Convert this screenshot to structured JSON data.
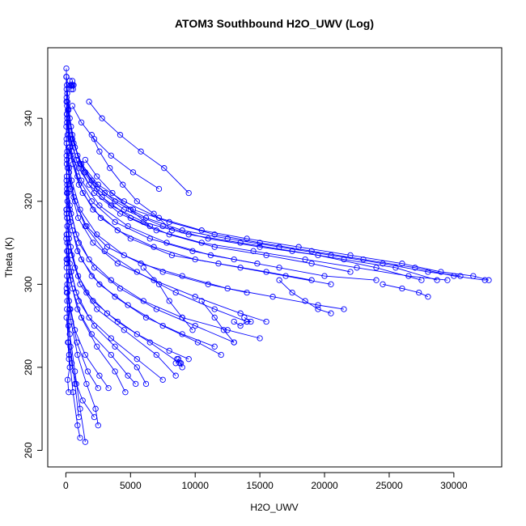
{
  "chart_data": {
    "type": "scatter",
    "title": "ATOM3 Southbound H2O_UWV (Log)",
    "xlabel": "H2O_UWV",
    "ylabel": "Theta (K)",
    "xlim": [
      -1400,
      33700
    ],
    "ylim": [
      256,
      357
    ],
    "xticks": [
      0,
      5000,
      10000,
      15000,
      20000,
      25000,
      30000
    ],
    "yticks": [
      260,
      280,
      300,
      320,
      340
    ],
    "xtick_labels": [
      "0",
      "5000",
      "10000",
      "15000",
      "20000",
      "25000",
      "30000"
    ],
    "ytick_labels": [
      "260",
      "280",
      "300",
      "320",
      "340"
    ],
    "series_color": "#0000ff",
    "marker": "open-circle",
    "connected": true,
    "profiles": [
      {
        "x": [
          50,
          200,
          500,
          1200,
          2500,
          4500,
          7200,
          10500,
          14000,
          18000,
          22000,
          26000,
          29000,
          31500,
          32700
        ],
        "y": [
          350,
          342,
          335,
          329,
          324,
          320,
          316,
          313,
          311,
          309,
          307,
          305,
          303,
          302,
          301
        ]
      },
      {
        "x": [
          80,
          300,
          700,
          1500,
          3000,
          5200,
          8000,
          11500,
          15000,
          19000,
          23000,
          27000,
          30000,
          32400
        ],
        "y": [
          348,
          340,
          333,
          327,
          322,
          318,
          315,
          312,
          310,
          308,
          306,
          304,
          302,
          301
        ]
      },
      {
        "x": [
          100,
          400,
          900,
          2000,
          3800,
          6200,
          9000,
          12500,
          16500,
          20500,
          24500,
          28000,
          30500
        ],
        "y": [
          346,
          338,
          331,
          325,
          320,
          316,
          313,
          311,
          309,
          307,
          305,
          303,
          302
        ]
      },
      {
        "x": [
          60,
          250,
          800,
          1800,
          3500,
          6000,
          9500,
          13500,
          17500,
          21500,
          25500,
          28700
        ],
        "y": [
          345,
          337,
          330,
          324,
          319,
          315,
          312,
          310,
          308,
          306,
          304,
          301
        ]
      },
      {
        "x": [
          120,
          500,
          1100,
          2400,
          4500,
          7500,
          11000,
          15000,
          19500,
          24000,
          27500
        ],
        "y": [
          344,
          336,
          329,
          323,
          318,
          314,
          311,
          309,
          307,
          304,
          301
        ]
      },
      {
        "x": [
          90,
          350,
          1000,
          2200,
          4200,
          7000,
          10500,
          14500,
          18500,
          22500,
          26500,
          29500
        ],
        "y": [
          343,
          335,
          328,
          322,
          317,
          313,
          310,
          308,
          306,
          304,
          302,
          301
        ]
      },
      {
        "x": [
          150,
          600,
          1400,
          2800,
          5000,
          8000,
          11500,
          15500,
          19000,
          22000
        ],
        "y": [
          342,
          334,
          327,
          321,
          316,
          312,
          309,
          307,
          305,
          303
        ]
      },
      {
        "x": [
          70,
          300,
          900,
          2000,
          3800,
          6500,
          9800,
          13000,
          16500,
          20000,
          24000
        ],
        "y": [
          341,
          333,
          326,
          320,
          315,
          311,
          308,
          306,
          304,
          302,
          301
        ]
      },
      {
        "x": [
          100,
          450,
          1200,
          2600,
          4800,
          7800,
          11200,
          14800
        ],
        "y": [
          340,
          332,
          325,
          319,
          314,
          310,
          307,
          305
        ]
      },
      {
        "x": [
          80,
          350,
          1000,
          2100,
          4000,
          6800,
          10000,
          13500,
          17000,
          20500
        ],
        "y": [
          339,
          331,
          324,
          318,
          313,
          309,
          306,
          304,
          302,
          300
        ]
      },
      {
        "x": [
          130,
          550,
          1300,
          2700,
          5000,
          8200,
          11800,
          15500,
          19000
        ],
        "y": [
          336,
          329,
          322,
          316,
          311,
          307,
          305,
          303,
          301
        ]
      },
      {
        "x": [
          60,
          250,
          700,
          1600,
          3200,
          5800,
          9000,
          12500,
          16000,
          19500,
          21500
        ],
        "y": [
          334,
          327,
          320,
          314,
          309,
          305,
          302,
          299,
          297,
          295,
          294
        ]
      },
      {
        "x": [
          110,
          450,
          1100,
          2400,
          4500,
          7500,
          11000,
          14000
        ],
        "y": [
          332,
          325,
          318,
          312,
          307,
          303,
          300,
          298
        ]
      },
      {
        "x": [
          90,
          380,
          950,
          2100,
          4000,
          6800,
          10000,
          13500,
          15500
        ],
        "y": [
          330,
          323,
          316,
          310,
          305,
          301,
          297,
          293,
          291
        ]
      },
      {
        "x": [
          140,
          600,
          1500,
          3000,
          5500,
          8500,
          11500,
          14000
        ],
        "y": [
          328,
          321,
          314,
          308,
          303,
          298,
          294,
          291
        ]
      },
      {
        "x": [
          70,
          300,
          800,
          1800,
          3500,
          6000,
          9000,
          12500,
          15000
        ],
        "y": [
          326,
          319,
          312,
          306,
          301,
          296,
          292,
          289,
          287
        ]
      },
      {
        "x": [
          100,
          400,
          1000,
          2200,
          4200,
          7000,
          10000,
          13000
        ],
        "y": [
          324,
          317,
          310,
          304,
          299,
          294,
          290,
          286
        ]
      },
      {
        "x": [
          80,
          350,
          900,
          2000,
          3800,
          6200,
          9000,
          11500
        ],
        "y": [
          322,
          315,
          308,
          302,
          297,
          292,
          288,
          285
        ]
      },
      {
        "x": [
          120,
          500,
          1200,
          2600,
          4800,
          7500,
          10200,
          12000
        ],
        "y": [
          320,
          313,
          306,
          300,
          295,
          290,
          286,
          283
        ]
      },
      {
        "x": [
          60,
          250,
          700,
          1600,
          3200,
          5500,
          8000,
          9500
        ],
        "y": [
          318,
          311,
          304,
          298,
          293,
          288,
          284,
          282
        ]
      },
      {
        "x": [
          90,
          380,
          950,
          2100,
          4000,
          6500,
          8800
        ],
        "y": [
          316,
          309,
          302,
          296,
          291,
          286,
          281
        ]
      },
      {
        "x": [
          110,
          450,
          1100,
          2400,
          4500,
          7000,
          8500
        ],
        "y": [
          314,
          307,
          300,
          294,
          289,
          283,
          278
        ]
      },
      {
        "x": [
          70,
          300,
          800,
          1800,
          3500,
          5500,
          7500
        ],
        "y": [
          312,
          305,
          298,
          292,
          287,
          282,
          277
        ]
      },
      {
        "x": [
          100,
          400,
          1000,
          2200,
          3800,
          5500,
          6200
        ],
        "y": [
          310,
          303,
          296,
          290,
          285,
          280,
          276
        ]
      },
      {
        "x": [
          80,
          350,
          900,
          2000,
          3500,
          4800,
          5400
        ],
        "y": [
          308,
          301,
          294,
          288,
          283,
          278,
          276
        ]
      },
      {
        "x": [
          130,
          500,
          1200,
          2400,
          3800,
          4600
        ],
        "y": [
          306,
          299,
          292,
          285,
          279,
          274
        ]
      },
      {
        "x": [
          60,
          250,
          700,
          1500,
          2600,
          3300
        ],
        "y": [
          304,
          296,
          289,
          283,
          278,
          275
        ]
      },
      {
        "x": [
          90,
          350,
          850,
          1700,
          2500
        ],
        "y": [
          302,
          294,
          286,
          279,
          275
        ]
      },
      {
        "x": [
          110,
          400,
          900,
          1600,
          2300,
          2500
        ],
        "y": [
          300,
          291,
          283,
          276,
          270,
          266
        ]
      },
      {
        "x": [
          70,
          300,
          700,
          1100,
          1500
        ],
        "y": [
          298,
          288,
          279,
          270,
          262
        ]
      },
      {
        "x": [
          100,
          350,
          700,
          1000
        ],
        "y": [
          296,
          285,
          276,
          268
        ]
      },
      {
        "x": [
          80,
          250,
          550,
          900,
          1100
        ],
        "y": [
          294,
          283,
          274,
          266,
          263
        ]
      },
      {
        "x": [
          50,
          200,
          450,
          800,
          1300,
          2200
        ],
        "y": [
          292,
          286,
          281,
          276,
          272,
          268
        ]
      },
      {
        "x": [
          300,
          350,
          380,
          420,
          450,
          500,
          520,
          550,
          600
        ],
        "y": [
          349,
          348,
          348,
          347,
          348,
          349,
          348,
          347,
          348
        ]
      },
      {
        "x": [
          8500,
          8700,
          8900,
          9000,
          8800,
          8600
        ],
        "y": [
          281,
          282,
          281,
          280,
          281,
          282
        ]
      },
      {
        "x": [
          13000,
          13500,
          14000,
          14300,
          13800
        ],
        "y": [
          291,
          290,
          291,
          291,
          292
        ]
      },
      {
        "x": [
          2000,
          2600,
          3400,
          4400,
          5500,
          6800,
          8200
        ],
        "y": [
          336,
          332,
          328,
          324,
          320,
          317,
          313
        ]
      },
      {
        "x": [
          1800,
          2800,
          4200,
          5800,
          7600,
          9500
        ],
        "y": [
          344,
          340,
          336,
          332,
          328,
          322
        ]
      },
      {
        "x": [
          500,
          1200,
          2200,
          3500,
          5200,
          7200
        ],
        "y": [
          343,
          339,
          335,
          331,
          327,
          323
        ]
      },
      {
        "x": [
          1500,
          2400,
          3600,
          5000,
          6500
        ],
        "y": [
          330,
          326,
          322,
          318,
          314
        ]
      },
      {
        "x": [
          10500,
          11500,
          12200,
          13000
        ],
        "y": [
          296,
          292,
          289,
          286
        ]
      },
      {
        "x": [
          6000,
          7200,
          8000,
          9000,
          9800
        ],
        "y": [
          304,
          300,
          296,
          292,
          289
        ]
      },
      {
        "x": [
          16500,
          17500,
          18500,
          19500,
          20500
        ],
        "y": [
          301,
          298,
          296,
          294,
          293
        ]
      },
      {
        "x": [
          24500,
          26000,
          27300,
          28000
        ],
        "y": [
          300,
          299,
          298,
          297
        ]
      },
      {
        "x": [
          200,
          260,
          150,
          300,
          220,
          180,
          250,
          120,
          280,
          200,
          160,
          240,
          300,
          140,
          220
        ],
        "y": [
          333,
          328,
          322,
          318,
          312,
          308,
          303,
          298,
          294,
          290,
          286,
          282,
          280,
          277,
          274
        ]
      },
      {
        "x": [
          40,
          60,
          80,
          50,
          70,
          90,
          60,
          40,
          80,
          60
        ],
        "y": [
          352,
          347,
          341,
          335,
          329,
          323,
          317,
          311,
          305,
          299
        ]
      },
      {
        "x": [
          30,
          50,
          40,
          60,
          50,
          40,
          60,
          50
        ],
        "y": [
          350,
          344,
          338,
          331,
          325,
          318,
          312,
          306
        ]
      }
    ]
  }
}
